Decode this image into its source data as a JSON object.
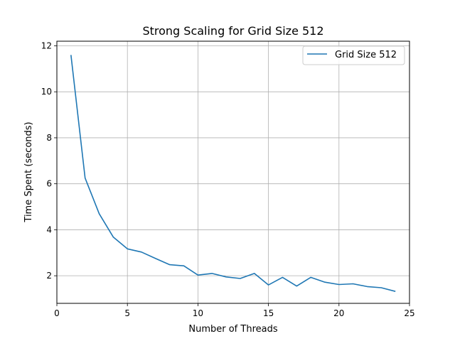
{
  "chart_data": {
    "type": "line",
    "title": "Strong Scaling for Grid Size 512",
    "xlabel": "Number of Threads",
    "ylabel": "Time Spent (seconds)",
    "xlim": [
      0,
      25
    ],
    "ylim": [
      0.8,
      12.2
    ],
    "xticks": [
      0,
      5,
      10,
      15,
      20,
      25
    ],
    "yticks": [
      2,
      4,
      6,
      8,
      10,
      12
    ],
    "grid": true,
    "legend_position": "top-right",
    "series": [
      {
        "name": "Grid Size 512",
        "color": "#1f77b4",
        "x": [
          1,
          2,
          3,
          4,
          5,
          6,
          7,
          8,
          9,
          10,
          11,
          12,
          13,
          14,
          15,
          16,
          17,
          18,
          19,
          20,
          21,
          22,
          23,
          24
        ],
        "y": [
          11.6,
          6.25,
          4.7,
          3.68,
          3.17,
          3.03,
          2.75,
          2.48,
          2.43,
          2.03,
          2.1,
          1.95,
          1.88,
          2.1,
          1.6,
          1.93,
          1.55,
          1.93,
          1.72,
          1.62,
          1.65,
          1.53,
          1.48,
          1.32
        ]
      }
    ]
  }
}
